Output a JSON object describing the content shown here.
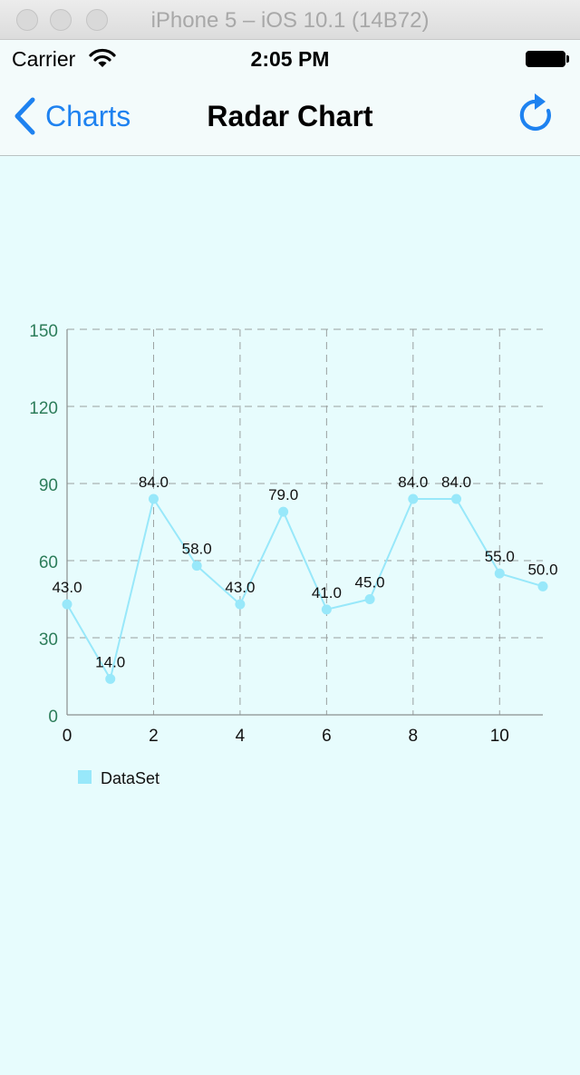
{
  "window": {
    "title": "iPhone 5 – iOS 10.1 (14B72)"
  },
  "status_bar": {
    "carrier": "Carrier",
    "time": "2:05 PM"
  },
  "nav": {
    "back_label": "Charts",
    "title": "Radar Chart"
  },
  "colors": {
    "line": "#98e8fa",
    "axis_label": "#2d7d5a",
    "grid": "#9aa0a0",
    "background": "#e7fcfd",
    "accent": "#1e82f0"
  },
  "chart_data": {
    "type": "line",
    "x": [
      0,
      1,
      2,
      3,
      4,
      5,
      6,
      7,
      8,
      9,
      10,
      11
    ],
    "series": [
      {
        "name": "DataSet",
        "values": [
          43.0,
          14.0,
          84.0,
          58.0,
          43.0,
          79.0,
          41.0,
          45.0,
          84.0,
          84.0,
          55.0,
          50.0
        ],
        "value_labels": [
          "43.0",
          "14.0",
          "84.0",
          "58.0",
          "43.0",
          "79.0",
          "41.0",
          "45.0",
          "84.0",
          "84.0",
          "55.0",
          "50.0"
        ]
      }
    ],
    "x_ticks": [
      "0",
      "2",
      "4",
      "6",
      "8",
      "10"
    ],
    "y_ticks": [
      "0",
      "30",
      "60",
      "90",
      "120",
      "150"
    ],
    "xlim": [
      0,
      11
    ],
    "ylim": [
      0,
      150
    ],
    "grid": true,
    "legend": {
      "position": "bottom-left",
      "entries": [
        "DataSet"
      ]
    }
  }
}
